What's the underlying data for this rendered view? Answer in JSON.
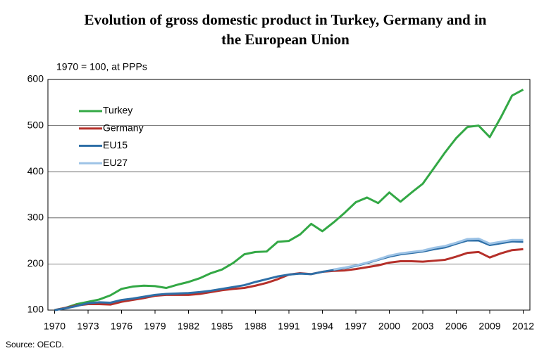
{
  "chart_data": {
    "type": "line",
    "title": [
      "Evolution of gross domestic product in Turkey, Germany and in",
      "the European Union"
    ],
    "subtitle": "1970 = 100, at PPPs",
    "source": "Source: OECD.",
    "x": [
      1970,
      1971,
      1972,
      1973,
      1974,
      1975,
      1976,
      1977,
      1978,
      1979,
      1980,
      1981,
      1982,
      1983,
      1984,
      1985,
      1986,
      1987,
      1988,
      1989,
      1990,
      1991,
      1992,
      1993,
      1994,
      1995,
      1996,
      1997,
      1998,
      1999,
      2000,
      2001,
      2002,
      2003,
      2004,
      2005,
      2006,
      2007,
      2008,
      2009,
      2010,
      2011,
      2012
    ],
    "series": [
      {
        "name": "Turkey",
        "color": "#33a845",
        "values": [
          100,
          105,
          113,
          118,
          123,
          132,
          146,
          151,
          153,
          152,
          148,
          155,
          161,
          169,
          180,
          188,
          202,
          221,
          226,
          227,
          248,
          250,
          264,
          287,
          271,
          290,
          311,
          334,
          344,
          332,
          355,
          335,
          355,
          374,
          408,
          442,
          473,
          497,
          500,
          475,
          518,
          565,
          578
        ]
      },
      {
        "name": "Germany",
        "color": "#b5302a",
        "values": [
          100,
          105,
          110,
          113,
          113,
          112,
          118,
          122,
          126,
          131,
          133,
          133,
          133,
          135,
          139,
          143,
          146,
          148,
          153,
          159,
          167,
          177,
          180,
          178,
          183,
          185,
          186,
          189,
          193,
          197,
          203,
          206,
          206,
          205,
          207,
          209,
          216,
          224,
          226,
          214,
          223,
          230,
          232
        ]
      },
      {
        "name": "EU15",
        "color": "#2e6fa7",
        "values": [
          100,
          104,
          109,
          115,
          117,
          116,
          122,
          125,
          129,
          133,
          135,
          136,
          137,
          139,
          142,
          146,
          150,
          154,
          161,
          167,
          173,
          177,
          179,
          178,
          183,
          187,
          191,
          196,
          202,
          209,
          216,
          221,
          224,
          227,
          232,
          236,
          244,
          251,
          251,
          241,
          245,
          249,
          248
        ]
      },
      {
        "name": "EU27",
        "color": "#9dc3e6",
        "values": [
          null,
          null,
          null,
          null,
          null,
          null,
          null,
          null,
          null,
          null,
          null,
          null,
          null,
          null,
          null,
          null,
          null,
          null,
          null,
          null,
          null,
          null,
          null,
          null,
          null,
          188,
          192,
          197,
          203,
          210,
          218,
          223,
          226,
          229,
          235,
          239,
          246,
          254,
          255,
          244,
          248,
          252,
          252
        ]
      }
    ],
    "xlim": [
      1969.4,
      2012.6
    ],
    "xticks": [
      1970,
      1973,
      1976,
      1979,
      1982,
      1985,
      1988,
      1991,
      1994,
      1997,
      2000,
      2003,
      2006,
      2009,
      2012
    ],
    "ylim": [
      100,
      600
    ],
    "yticks": [
      100,
      200,
      300,
      400,
      500,
      600
    ],
    "grid": true,
    "legend": "upper-left"
  }
}
